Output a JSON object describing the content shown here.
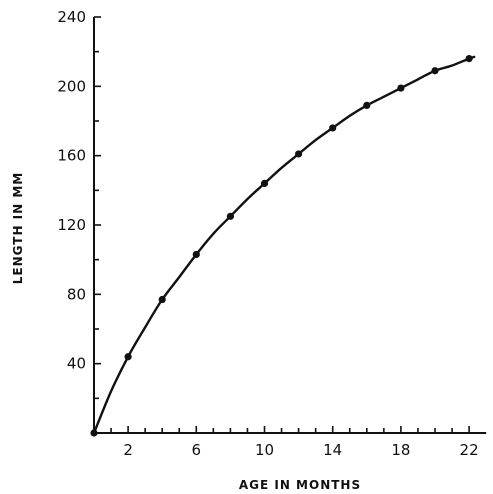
{
  "chart_data": {
    "type": "line",
    "title": "",
    "xlabel": "AGE IN MONTHS",
    "ylabel": "LENGTH IN MM",
    "xlim": [
      0,
      23
    ],
    "ylim": [
      0,
      240
    ],
    "x_ticks": [
      2,
      6,
      10,
      14,
      18,
      22
    ],
    "y_ticks": [
      40,
      80,
      120,
      160,
      200,
      240
    ],
    "grid": false,
    "legend": "none",
    "color": "#111111",
    "series": [
      {
        "kind": "points",
        "x": [
          0,
          2,
          4,
          6,
          8,
          10,
          12,
          14,
          16,
          18,
          20,
          22
        ],
        "y": [
          0,
          44,
          77,
          103,
          125,
          144,
          161,
          176,
          189,
          199,
          209,
          216
        ]
      },
      {
        "kind": "fitted-curve",
        "x": [
          0,
          1,
          2,
          3,
          4,
          5,
          6,
          7,
          8,
          9,
          10,
          11,
          12,
          13,
          14,
          15,
          16,
          17,
          18,
          19,
          20,
          21,
          22,
          22.3
        ],
        "y": [
          0,
          24,
          44,
          61,
          77,
          90,
          103,
          115,
          125,
          135,
          144,
          153,
          161,
          169,
          176,
          183,
          189,
          194,
          199,
          204,
          209,
          212,
          216,
          217
        ]
      }
    ]
  }
}
